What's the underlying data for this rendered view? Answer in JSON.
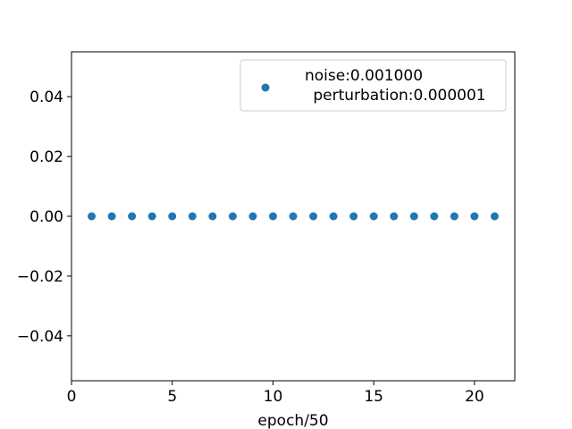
{
  "chart_data": {
    "type": "scatter",
    "title": "",
    "xlabel": "epoch/50",
    "ylabel": "",
    "xlim": [
      0,
      22
    ],
    "ylim": [
      -0.055,
      0.055
    ],
    "x_ticks": [
      0,
      5,
      10,
      15,
      20
    ],
    "x_tick_labels": [
      "0",
      "5",
      "10",
      "15",
      "20"
    ],
    "y_ticks": [
      -0.04,
      -0.02,
      0.0,
      0.02,
      0.04
    ],
    "y_tick_labels": [
      "−0.04",
      "−0.02",
      "0.00",
      "0.02",
      "0.04"
    ],
    "grid": false,
    "legend_position": "top-right",
    "series": [
      {
        "name": "noise:0.001000\n perturbation:0.000001",
        "legend_lines": [
          "noise:0.001000",
          "perturbation:0.000001"
        ],
        "color": "#1f77b4",
        "x": [
          1,
          2,
          3,
          4,
          5,
          6,
          7,
          8,
          9,
          10,
          11,
          12,
          13,
          14,
          15,
          16,
          17,
          18,
          19,
          20,
          21
        ],
        "y": [
          0,
          0,
          0,
          0,
          0,
          0,
          0,
          0,
          0,
          0,
          0,
          0,
          0,
          0,
          0,
          0,
          0,
          0,
          0,
          0,
          0
        ]
      }
    ]
  }
}
